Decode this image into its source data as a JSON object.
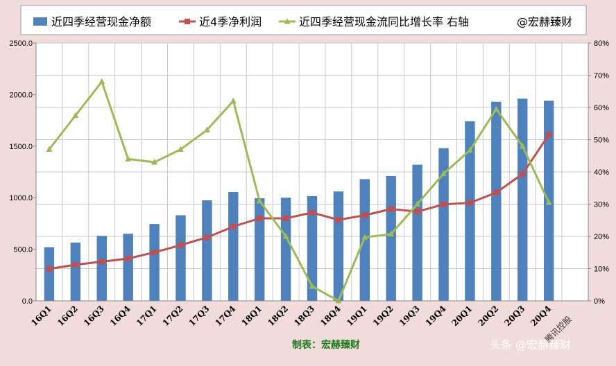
{
  "chart_data": {
    "type": "bar+line",
    "categories": [
      "16Q1",
      "16Q2",
      "16Q3",
      "16Q4",
      "17Q1",
      "17Q2",
      "17Q3",
      "17Q4",
      "18Q1",
      "18Q2",
      "18Q3",
      "18Q4",
      "19Q1",
      "19Q2",
      "19Q3",
      "19Q4",
      "20Q1",
      "20Q2",
      "20Q3",
      "20Q4"
    ],
    "series": [
      {
        "name": "近四季经营现金净额",
        "kind": "bar",
        "axis": "left",
        "color": "#4f81bd",
        "values": [
          520,
          565,
          630,
          650,
          745,
          830,
          975,
          1055,
          995,
          1000,
          1015,
          1060,
          1180,
          1210,
          1320,
          1480,
          1740,
          1930,
          1960,
          1940
        ]
      },
      {
        "name": "近4季净利润",
        "kind": "line",
        "axis": "left",
        "color": "#c0504d",
        "values": [
          310,
          350,
          380,
          410,
          470,
          540,
          615,
          720,
          800,
          800,
          855,
          785,
          830,
          890,
          865,
          935,
          950,
          1050,
          1230,
          1610
        ]
      },
      {
        "name": "近四季经营现金流同比增长率 右轴",
        "kind": "line",
        "axis": "right",
        "color": "#9bbb59",
        "values": [
          0.47,
          0.575,
          0.68,
          0.44,
          0.43,
          0.47,
          0.53,
          0.62,
          0.31,
          0.2,
          0.045,
          0.0,
          0.197,
          0.207,
          0.3,
          0.395,
          0.467,
          0.595,
          0.48,
          0.305
        ]
      }
    ],
    "y_left": {
      "min": 0,
      "max": 2500,
      "ticks": [
        "0.0",
        "500.0",
        "1000.0",
        "1500.0",
        "2000.0",
        "2500.0"
      ]
    },
    "y_right": {
      "min": 0,
      "max": 0.8,
      "ticks": [
        "0%",
        "10%",
        "20%",
        "30%",
        "40%",
        "50%",
        "60%",
        "70%",
        "80%"
      ]
    },
    "grid": true,
    "legend_position": "top",
    "legend_extra": "@宏赫臻财",
    "credit": "制表：宏赫臻财",
    "corner_label": "腾讯控股",
    "watermark": "头条 @宏赫臻财"
  },
  "colors": {
    "background": "#f2dcdb",
    "plot": "#ffffff",
    "grid": "#c8c8c8"
  }
}
